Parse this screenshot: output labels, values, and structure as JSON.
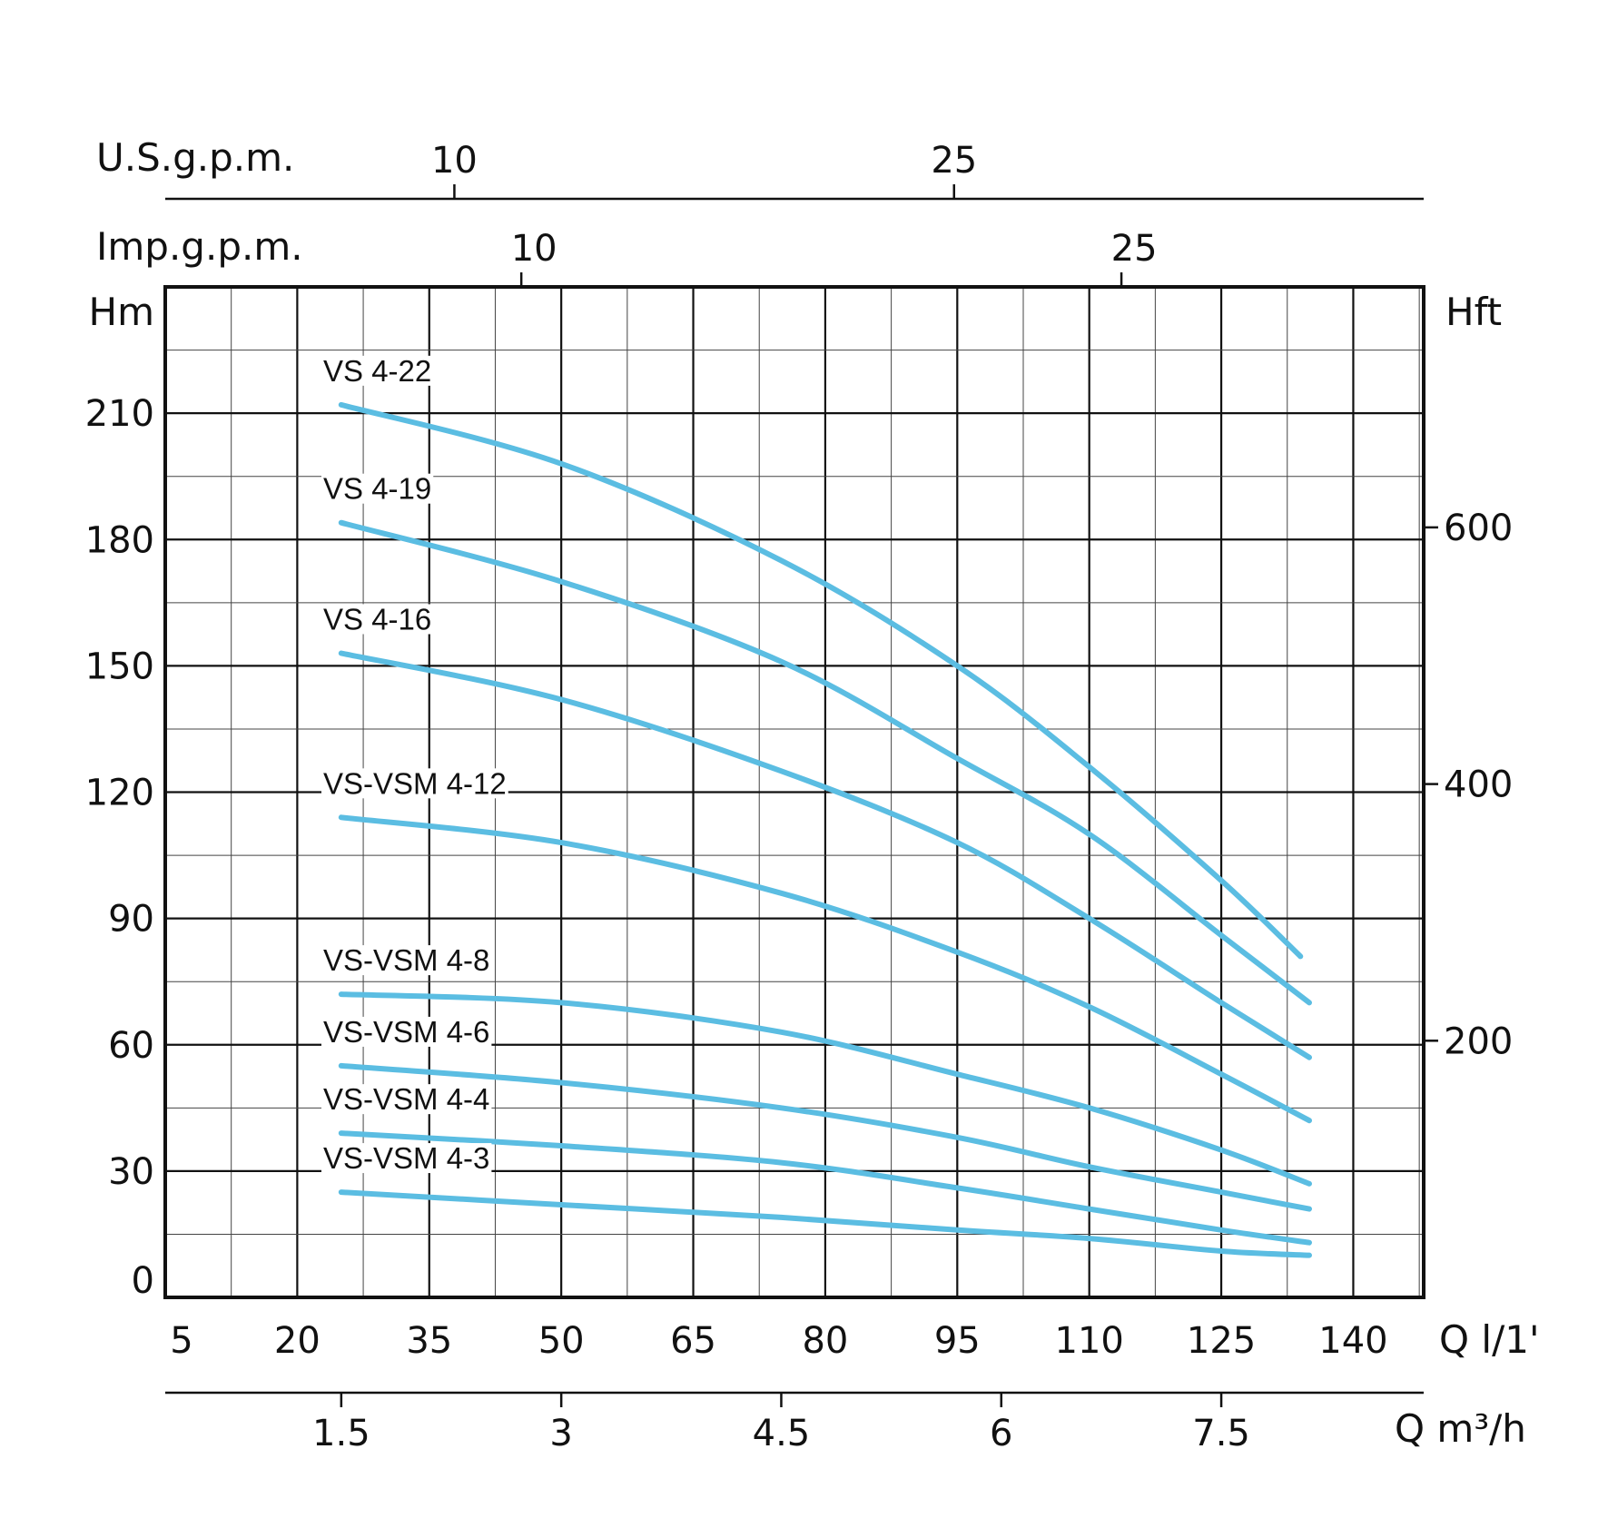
{
  "chart_data": {
    "type": "line",
    "title": "",
    "x_label": "Q l/1'",
    "x_unit_label": "Q",
    "x_unit_suffix": "l/1'",
    "y_label": "Hm",
    "y_right_label": "Hft",
    "x_range": [
      5,
      148
    ],
    "y_range": [
      0,
      240
    ],
    "x_ticks": [
      5,
      20,
      35,
      50,
      65,
      80,
      95,
      110,
      125,
      140
    ],
    "y_ticks": [
      0,
      30,
      60,
      90,
      120,
      150,
      180,
      210
    ],
    "y_right_ticks": [
      200,
      400,
      600
    ],
    "secondary_axes": {
      "usgpm": {
        "label": "U.S.g.p.m.",
        "ticks": [
          10,
          25
        ]
      },
      "impgpm": {
        "label": "Imp.g.p.m.",
        "ticks": [
          10,
          25
        ]
      },
      "m3h": {
        "label": "Q m³/h",
        "ticks": [
          "1.5",
          "3",
          "4.5",
          "6",
          "7.5"
        ]
      }
    },
    "grid": true,
    "line_color": "#5bbde2",
    "series": [
      {
        "name": "VS 4-22",
        "x": [
          25,
          50,
          75,
          95,
          110,
          125,
          134
        ],
        "y": [
          212,
          198,
          175,
          150,
          126,
          99,
          81
        ]
      },
      {
        "name": "VS 4-19",
        "x": [
          25,
          50,
          75,
          95,
          110,
          125,
          135
        ],
        "y": [
          184,
          170,
          151,
          128,
          110,
          86,
          70
        ]
      },
      {
        "name": "VS 4-16",
        "x": [
          25,
          50,
          75,
          95,
          110,
          125,
          135
        ],
        "y": [
          153,
          142,
          125,
          108,
          90,
          70,
          57
        ]
      },
      {
        "name": "VS-VSM 4-12",
        "x": [
          25,
          50,
          75,
          95,
          110,
          125,
          135
        ],
        "y": [
          114,
          108,
          96,
          82,
          69,
          53,
          42
        ]
      },
      {
        "name": "VS-VSM 4-8",
        "x": [
          25,
          50,
          75,
          95,
          110,
          125,
          135
        ],
        "y": [
          72,
          70,
          63,
          53,
          45,
          35,
          27
        ]
      },
      {
        "name": "VS-VSM 4-6",
        "x": [
          25,
          50,
          75,
          95,
          110,
          125,
          135
        ],
        "y": [
          55,
          51,
          45,
          38,
          31,
          25,
          21
        ]
      },
      {
        "name": "VS-VSM 4-4",
        "x": [
          25,
          50,
          75,
          95,
          110,
          125,
          135
        ],
        "y": [
          39,
          36,
          32,
          26,
          21,
          16,
          13
        ]
      },
      {
        "name": "VS-VSM 4-3",
        "x": [
          25,
          50,
          75,
          95,
          110,
          125,
          135
        ],
        "y": [
          25,
          22,
          19,
          16,
          14,
          11,
          10
        ]
      }
    ]
  }
}
